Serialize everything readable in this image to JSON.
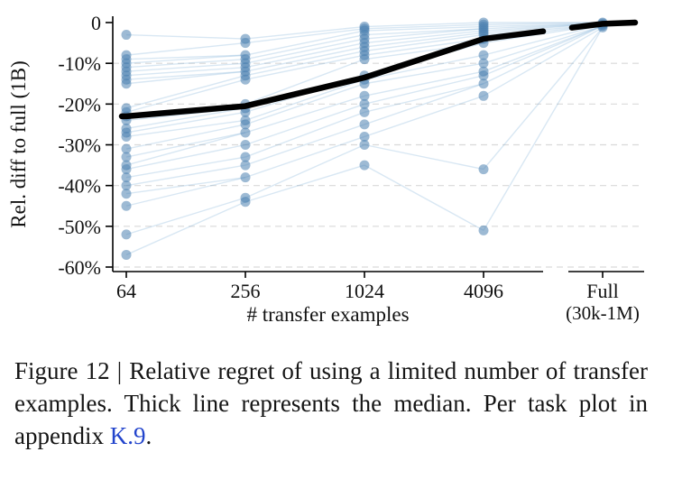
{
  "chart_data": {
    "type": "scatter",
    "title": "",
    "xlabel": "# transfer examples",
    "ylabel": "Rel. diff to full (1B)",
    "ylim": [
      -60,
      0
    ],
    "grid": "dashed-horizontal",
    "y_ticks": [
      "0",
      "-10%",
      "-20%",
      "-30%",
      "-40%",
      "-50%",
      "-60%"
    ],
    "y_tick_values": [
      0,
      -10,
      -20,
      -30,
      -40,
      -50,
      -60
    ],
    "categories": [
      "64",
      "256",
      "1024",
      "4096"
    ],
    "full_category": {
      "label": "Full",
      "sublabel": "(30k-1M)"
    },
    "scatter_by_category": [
      [
        -3,
        -8,
        -9,
        -10,
        -11,
        -12,
        -13,
        -14,
        -15,
        -21,
        -22,
        -23,
        -24,
        -26,
        -27,
        -28,
        -31,
        -33,
        -35,
        -36,
        -38,
        -40,
        -42,
        -45,
        -52,
        -57
      ],
      [
        -4,
        -5,
        -8,
        -9,
        -10,
        -11,
        -12,
        -13,
        -14,
        -20,
        -21,
        -22,
        -24,
        -25,
        -27,
        -30,
        -33,
        -35,
        -38,
        -43,
        -44
      ],
      [
        -1,
        -1.5,
        -2,
        -3,
        -4,
        -5,
        -6,
        -7,
        -8,
        -9,
        -13,
        -14,
        -15,
        -18,
        -20,
        -22,
        -25,
        -28,
        -30,
        -35
      ],
      [
        0,
        -0.5,
        -1,
        -1.5,
        -2,
        -2.5,
        -3,
        -4,
        -5,
        -8,
        -10,
        -12,
        -13,
        -15,
        -18,
        -36,
        -51
      ]
    ],
    "scatter_full": [
      0,
      -0.2,
      -0.5,
      -0.8,
      -1.2
    ],
    "median": {
      "name": "median",
      "values": [
        -23,
        -20.5,
        -13.5,
        -4,
        -0.3
      ]
    },
    "colors": {
      "scatter": "#4d82b0",
      "line": "#7fb0d8",
      "median": "#000000",
      "grid": "#d9d9d9",
      "axis": "#000000"
    }
  },
  "caption": {
    "text": "Figure 12 | Relative regret of using a limited number of transfer examples. Thick line represents the median. Per task plot in appendix ",
    "link": "K.9",
    "period": "."
  }
}
